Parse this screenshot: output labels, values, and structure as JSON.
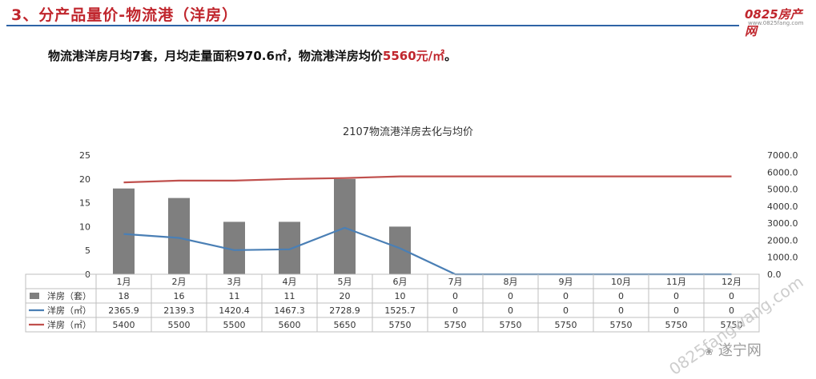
{
  "header": {
    "title": "3、分产品量价-物流港（洋房）",
    "logo_main": "0825房产网",
    "logo_sub": "www.0825fang.com"
  },
  "summary": {
    "text_before": "物流港洋房月均7套，月均走量面积970.6㎡，物流港洋房均价",
    "price": "5560元/㎡",
    "text_after": "。"
  },
  "watermark": {
    "text": "0825fangwang.com",
    "brand": "遂宁网"
  },
  "chart_data": {
    "type": "bar",
    "title": "2107物流港洋房去化与均价",
    "categories": [
      "1月",
      "2月",
      "3月",
      "4月",
      "5月",
      "6月",
      "7月",
      "8月",
      "9月",
      "10月",
      "11月",
      "12月"
    ],
    "ylim_left": [
      0,
      25
    ],
    "yticks_left": [
      0,
      5,
      10,
      15,
      20,
      25
    ],
    "ylim_right": [
      0,
      7000
    ],
    "yticks_right": [
      "0.0",
      "1000.0",
      "2000.0",
      "3000.0",
      "4000.0",
      "5000.0",
      "6000.0",
      "7000.0"
    ],
    "grid": false,
    "series": [
      {
        "name": "洋房（套）",
        "type": "bar",
        "axis": "left",
        "color": "#7f7f7f",
        "values": [
          18,
          16,
          11,
          11,
          20,
          10,
          0,
          0,
          0,
          0,
          0,
          0
        ],
        "labels": [
          "18",
          "16",
          "11",
          "11",
          "20",
          "10",
          "0",
          "0",
          "0",
          "0",
          "0",
          "0"
        ]
      },
      {
        "name": "洋房（㎡）",
        "type": "line",
        "axis": "right",
        "color": "#4a7fb5",
        "values": [
          2365.9,
          2139.3,
          1420.4,
          1467.3,
          2728.9,
          1525.7,
          0,
          0,
          0,
          0,
          0,
          0
        ],
        "labels": [
          "2365.9",
          "2139.3",
          "1420.4",
          "1467.3",
          "2728.9",
          "1525.7",
          "0",
          "0",
          "0",
          "0",
          "0",
          "0"
        ]
      },
      {
        "name": "洋房（㎡）",
        "type": "line",
        "axis": "right",
        "color": "#c0504d",
        "values": [
          5400,
          5500,
          5500,
          5600,
          5650,
          5750,
          5750,
          5750,
          5750,
          5750,
          5750,
          5750
        ],
        "labels": [
          "5400",
          "5500",
          "5500",
          "5600",
          "5650",
          "5750",
          "5750",
          "5750",
          "5750",
          "5750",
          "5750",
          "5750"
        ]
      }
    ]
  }
}
